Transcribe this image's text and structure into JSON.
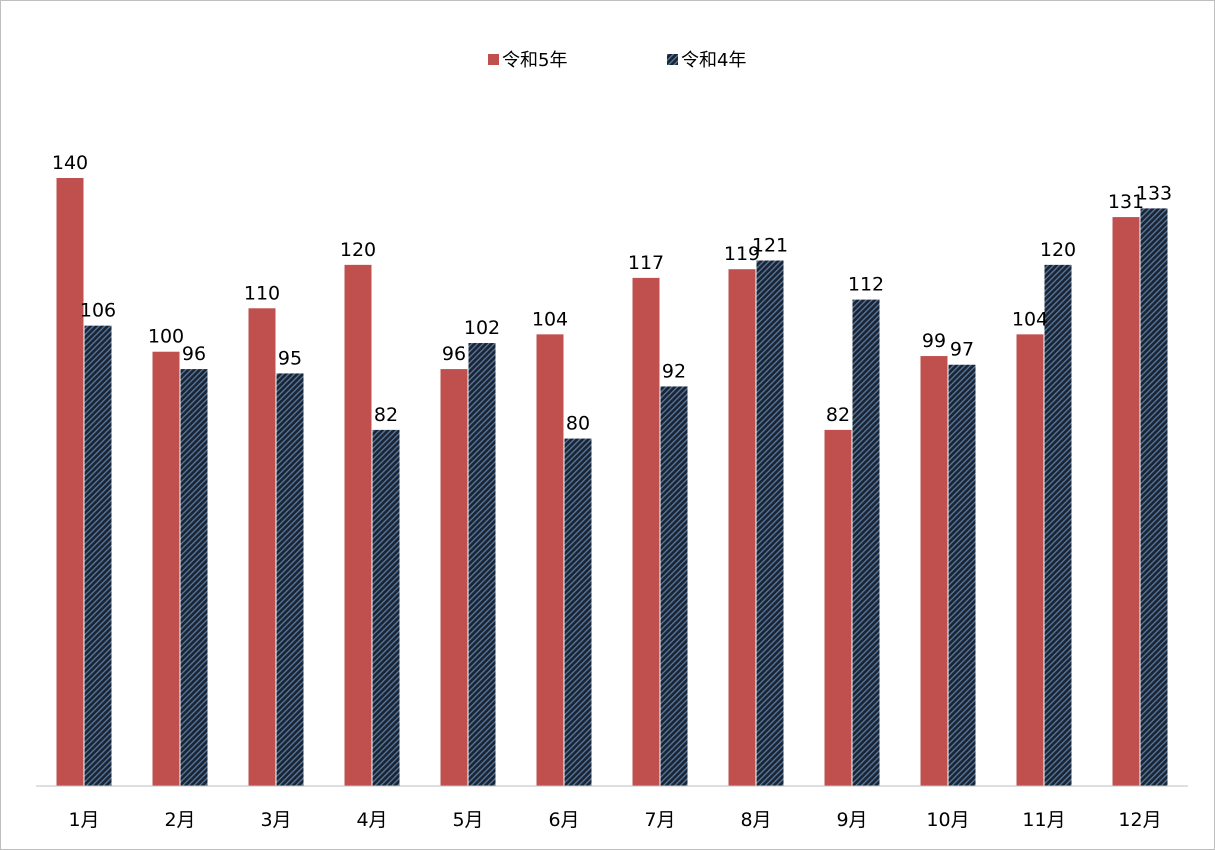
{
  "chart_data": {
    "type": "bar",
    "categories": [
      "1月",
      "2月",
      "3月",
      "4月",
      "5月",
      "6月",
      "7月",
      "8月",
      "9月",
      "10月",
      "11月",
      "12月"
    ],
    "series": [
      {
        "name": "令和5年",
        "values": [
          140,
          100,
          110,
          120,
          96,
          104,
          117,
          119,
          82,
          99,
          104,
          131
        ],
        "color": "#c0504d",
        "pattern": "solid"
      },
      {
        "name": "令和4年",
        "values": [
          106,
          96,
          95,
          82,
          102,
          80,
          92,
          121,
          112,
          97,
          120,
          133
        ],
        "color": "#1f2d3d",
        "pattern": "diagonal-hatch"
      }
    ],
    "ylim": [
      0,
      140
    ],
    "grid": false,
    "legend_position": "top-center",
    "data_labels": true
  }
}
